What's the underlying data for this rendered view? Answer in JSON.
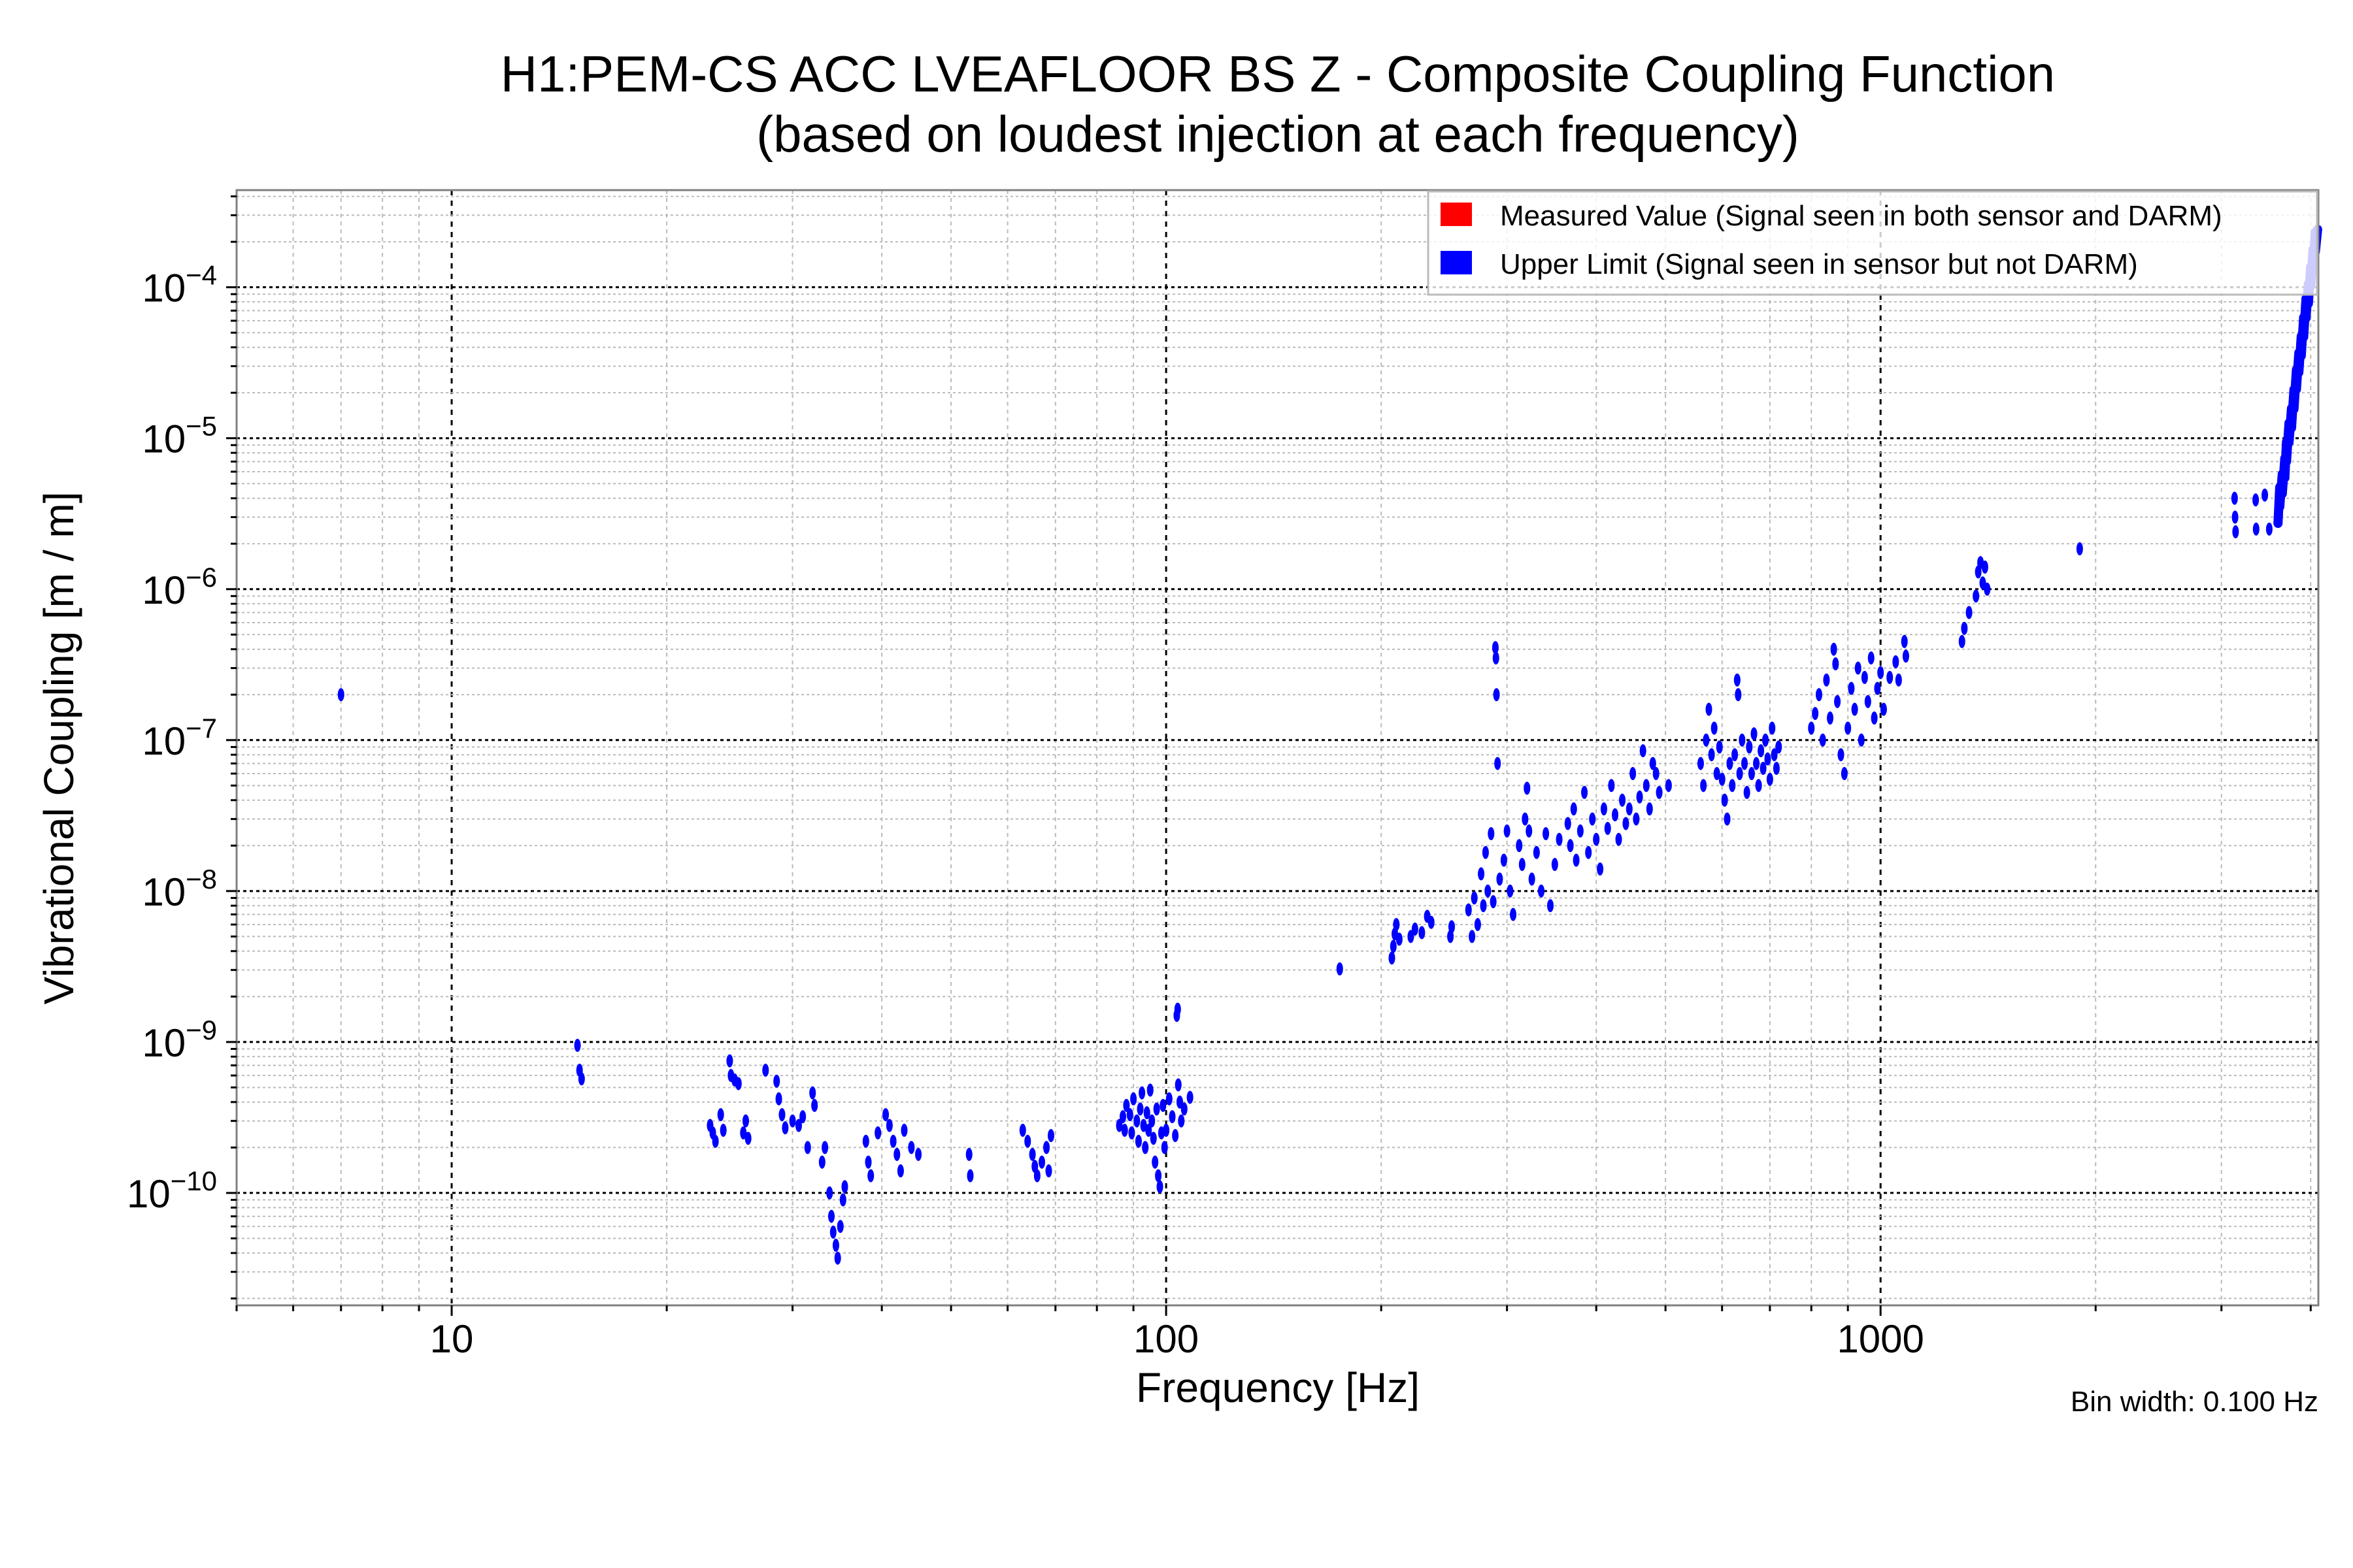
{
  "chart_data": {
    "type": "scatter",
    "title": [
      "H1:PEM-CS ACC LVEAFLOOR BS Z - Composite Coupling Function",
      "(based on loudest injection at each frequency)"
    ],
    "xlabel": "Frequency [Hz]",
    "ylabel": "Vibrational Coupling [m / m]",
    "xscale": "log",
    "yscale": "log",
    "xlim": [
      5,
      4100
    ],
    "ylim": [
      1.8e-11,
      0.00044
    ],
    "grid": true,
    "xticks": [
      {
        "value": 10,
        "label": "10"
      },
      {
        "value": 100,
        "label": "100"
      },
      {
        "value": 1000,
        "label": "1000"
      }
    ],
    "yticks": [
      {
        "value": 1e-10,
        "base": "10",
        "exp": "−10"
      },
      {
        "value": 1e-09,
        "base": "10",
        "exp": "−9"
      },
      {
        "value": 1e-08,
        "base": "10",
        "exp": "−8"
      },
      {
        "value": 1e-07,
        "base": "10",
        "exp": "−7"
      },
      {
        "value": 1e-06,
        "base": "10",
        "exp": "−6"
      },
      {
        "value": 1e-05,
        "base": "10",
        "exp": "−5"
      },
      {
        "value": 0.0001,
        "base": "10",
        "exp": "−4"
      }
    ],
    "legend": {
      "placement": "top-right",
      "entries": [
        {
          "label": "Measured Value (Signal seen in both sensor and DARM)",
          "color": "#ff0000"
        },
        {
          "label": "Upper Limit (Signal seen in sensor but not DARM)",
          "color": "#0000ff"
        }
      ]
    },
    "annotation": "Bin width: 0.100 Hz",
    "series": [
      {
        "name": "Measured Value",
        "color": "#ff0000",
        "points": []
      },
      {
        "name": "Upper Limit",
        "color": "#0000ff",
        "points": [
          [
            7,
            2e-07
          ],
          [
            15,
            9.5e-10
          ],
          [
            15.1,
            6.5e-10
          ],
          [
            15.2,
            5.7e-10
          ],
          [
            23,
            2.8e-10
          ],
          [
            23.2,
            2.5e-10
          ],
          [
            23.4,
            2.2e-10
          ],
          [
            23.8,
            3.3e-10
          ],
          [
            24,
            2.6e-10
          ],
          [
            24.5,
            7.5e-10
          ],
          [
            24.6,
            6e-10
          ],
          [
            24.9,
            5.6e-10
          ],
          [
            25.2,
            5.3e-10
          ],
          [
            25.6,
            2.5e-10
          ],
          [
            25.8,
            3e-10
          ],
          [
            26,
            2.3e-10
          ],
          [
            27.5,
            6.5e-10
          ],
          [
            28.5,
            5.5e-10
          ],
          [
            28.7,
            4.2e-10
          ],
          [
            29,
            3.3e-10
          ],
          [
            29.3,
            2.7e-10
          ],
          [
            30,
            3e-10
          ],
          [
            30.6,
            2.8e-10
          ],
          [
            31,
            3.2e-10
          ],
          [
            31.5,
            2e-10
          ],
          [
            32,
            4.6e-10
          ],
          [
            32.2,
            3.8e-10
          ],
          [
            33,
            1.6e-10
          ],
          [
            33.3,
            2e-10
          ],
          [
            33.8,
            1e-10
          ],
          [
            34,
            7e-11
          ],
          [
            34.2,
            5.5e-11
          ],
          [
            34.5,
            4.5e-11
          ],
          [
            34.7,
            3.7e-11
          ],
          [
            35,
            6e-11
          ],
          [
            35.3,
            9e-11
          ],
          [
            35.5,
            1.1e-10
          ],
          [
            38,
            2.2e-10
          ],
          [
            38.3,
            1.6e-10
          ],
          [
            38.6,
            1.3e-10
          ],
          [
            39.5,
            2.5e-10
          ],
          [
            40.5,
            3.3e-10
          ],
          [
            41,
            2.8e-10
          ],
          [
            41.5,
            2.2e-10
          ],
          [
            42,
            1.8e-10
          ],
          [
            42.5,
            1.4e-10
          ],
          [
            43,
            2.6e-10
          ],
          [
            44,
            2e-10
          ],
          [
            45,
            1.8e-10
          ],
          [
            53,
            1.8e-10
          ],
          [
            53.2,
            1.3e-10
          ],
          [
            63,
            2.6e-10
          ],
          [
            64,
            2.2e-10
          ],
          [
            65,
            1.8e-10
          ],
          [
            65.5,
            1.5e-10
          ],
          [
            66,
            1.3e-10
          ],
          [
            67,
            1.6e-10
          ],
          [
            68,
            2e-10
          ],
          [
            69,
            2.4e-10
          ],
          [
            68.5,
            1.4e-10
          ],
          [
            86,
            2.8e-10
          ],
          [
            87,
            3.2e-10
          ],
          [
            87.5,
            2.6e-10
          ],
          [
            88,
            3.8e-10
          ],
          [
            89,
            3.3e-10
          ],
          [
            89.5,
            2.5e-10
          ],
          [
            90,
            4.2e-10
          ],
          [
            91,
            3e-10
          ],
          [
            91.5,
            2.2e-10
          ],
          [
            92,
            3.6e-10
          ],
          [
            92.5,
            4.6e-10
          ],
          [
            93,
            2.8e-10
          ],
          [
            93.5,
            2e-10
          ],
          [
            94,
            3.4e-10
          ],
          [
            94.5,
            2.6e-10
          ],
          [
            95,
            4.8e-10
          ],
          [
            95.5,
            3e-10
          ],
          [
            96,
            2.3e-10
          ],
          [
            96.5,
            1.6e-10
          ],
          [
            97,
            3.6e-10
          ],
          [
            97.5,
            1.3e-10
          ],
          [
            98,
            1.1e-10
          ],
          [
            98.5,
            2.5e-10
          ],
          [
            99,
            3.8e-10
          ],
          [
            99.5,
            2e-10
          ],
          [
            100,
            2.6e-10
          ],
          [
            101,
            4.2e-10
          ],
          [
            102,
            3.2e-10
          ],
          [
            103,
            2.4e-10
          ],
          [
            104,
            5.2e-10
          ],
          [
            104.5,
            4e-10
          ],
          [
            105,
            3e-10
          ],
          [
            106,
            3.6e-10
          ],
          [
            108,
            4.3e-10
          ],
          [
            103.5,
            1.5e-09
          ],
          [
            103.8,
            1.65e-09
          ],
          [
            175,
            3.05e-09
          ],
          [
            207,
            3.6e-09
          ],
          [
            208,
            4.3e-09
          ],
          [
            209,
            5.2e-09
          ],
          [
            210,
            6e-09
          ],
          [
            212,
            4.8e-09
          ],
          [
            220,
            5e-09
          ],
          [
            223,
            5.6e-09
          ],
          [
            228,
            5.3e-09
          ],
          [
            232,
            6.8e-09
          ],
          [
            235,
            6.2e-09
          ],
          [
            250,
            5e-09
          ],
          [
            251,
            5.8e-09
          ],
          [
            265,
            7.5e-09
          ],
          [
            268,
            5e-09
          ],
          [
            270,
            9e-09
          ],
          [
            273,
            6e-09
          ],
          [
            276,
            1.3e-08
          ],
          [
            278,
            8e-09
          ],
          [
            280,
            1.8e-08
          ],
          [
            282,
            1e-08
          ],
          [
            285,
            2.4e-08
          ],
          [
            287,
            8.5e-09
          ],
          [
            289,
            4.1e-07
          ],
          [
            289.5,
            3.5e-07
          ],
          [
            290,
            2e-07
          ],
          [
            291,
            7e-08
          ],
          [
            293,
            1.2e-08
          ],
          [
            297,
            1.6e-08
          ],
          [
            300,
            2.5e-08
          ],
          [
            303,
            1e-08
          ],
          [
            306,
            7e-09
          ],
          [
            312,
            2e-08
          ],
          [
            315,
            1.5e-08
          ],
          [
            318,
            3e-08
          ],
          [
            320,
            4.8e-08
          ],
          [
            322,
            2.5e-08
          ],
          [
            325,
            1.2e-08
          ],
          [
            330,
            1.8e-08
          ],
          [
            335,
            1e-08
          ],
          [
            340,
            2.4e-08
          ],
          [
            345,
            8e-09
          ],
          [
            350,
            1.5e-08
          ],
          [
            355,
            2.2e-08
          ],
          [
            365,
            2.8e-08
          ],
          [
            368,
            2e-08
          ],
          [
            372,
            3.5e-08
          ],
          [
            375,
            1.6e-08
          ],
          [
            380,
            2.5e-08
          ],
          [
            385,
            4.5e-08
          ],
          [
            390,
            1.8e-08
          ],
          [
            395,
            3e-08
          ],
          [
            400,
            2.2e-08
          ],
          [
            405,
            1.4e-08
          ],
          [
            410,
            3.5e-08
          ],
          [
            415,
            2.6e-08
          ],
          [
            420,
            5e-08
          ],
          [
            425,
            3.2e-08
          ],
          [
            430,
            2.2e-08
          ],
          [
            435,
            4e-08
          ],
          [
            440,
            2.8e-08
          ],
          [
            445,
            3.5e-08
          ],
          [
            450,
            6e-08
          ],
          [
            455,
            3e-08
          ],
          [
            460,
            4.2e-08
          ],
          [
            465,
            8.5e-08
          ],
          [
            470,
            5e-08
          ],
          [
            475,
            3.5e-08
          ],
          [
            480,
            7e-08
          ],
          [
            485,
            6e-08
          ],
          [
            490,
            4.5e-08
          ],
          [
            505,
            5e-08
          ],
          [
            560,
            7e-08
          ],
          [
            565,
            5e-08
          ],
          [
            570,
            1e-07
          ],
          [
            575,
            1.6e-07
          ],
          [
            580,
            8e-08
          ],
          [
            585,
            1.2e-07
          ],
          [
            590,
            6e-08
          ],
          [
            595,
            9e-08
          ],
          [
            600,
            5.5e-08
          ],
          [
            605,
            4e-08
          ],
          [
            610,
            3e-08
          ],
          [
            615,
            7e-08
          ],
          [
            620,
            5e-08
          ],
          [
            625,
            8e-08
          ],
          [
            630,
            2.5e-07
          ],
          [
            632,
            2e-07
          ],
          [
            635,
            6e-08
          ],
          [
            640,
            1e-07
          ],
          [
            645,
            7e-08
          ],
          [
            650,
            4.5e-08
          ],
          [
            655,
            9e-08
          ],
          [
            660,
            6e-08
          ],
          [
            665,
            1.1e-07
          ],
          [
            670,
            7e-08
          ],
          [
            675,
            5e-08
          ],
          [
            680,
            8.5e-08
          ],
          [
            685,
            6.5e-08
          ],
          [
            690,
            1e-07
          ],
          [
            695,
            7.5e-08
          ],
          [
            700,
            5.5e-08
          ],
          [
            705,
            1.2e-07
          ],
          [
            710,
            8e-08
          ],
          [
            715,
            6.5e-08
          ],
          [
            720,
            9e-08
          ],
          [
            800,
            1.2e-07
          ],
          [
            810,
            1.5e-07
          ],
          [
            820,
            2e-07
          ],
          [
            830,
            1e-07
          ],
          [
            840,
            2.5e-07
          ],
          [
            850,
            1.4e-07
          ],
          [
            860,
            4e-07
          ],
          [
            865,
            3.2e-07
          ],
          [
            870,
            1.8e-07
          ],
          [
            880,
            8e-08
          ],
          [
            890,
            6e-08
          ],
          [
            900,
            1.2e-07
          ],
          [
            910,
            2.2e-07
          ],
          [
            920,
            1.6e-07
          ],
          [
            930,
            3e-07
          ],
          [
            940,
            1e-07
          ],
          [
            950,
            2.6e-07
          ],
          [
            960,
            1.8e-07
          ],
          [
            970,
            3.5e-07
          ],
          [
            980,
            1.4e-07
          ],
          [
            990,
            2.2e-07
          ],
          [
            1000,
            2.8e-07
          ],
          [
            1010,
            1.6e-07
          ],
          [
            1030,
            2.6e-07
          ],
          [
            1050,
            3.3e-07
          ],
          [
            1060,
            2.5e-07
          ],
          [
            1080,
            4.5e-07
          ],
          [
            1085,
            3.6e-07
          ],
          [
            1300,
            4.5e-07
          ],
          [
            1310,
            5.5e-07
          ],
          [
            1330,
            7e-07
          ],
          [
            1360,
            9e-07
          ],
          [
            1370,
            1.3e-06
          ],
          [
            1380,
            1.5e-06
          ],
          [
            1390,
            1.1e-06
          ],
          [
            1400,
            1.4e-06
          ],
          [
            1410,
            1e-06
          ],
          [
            1900,
            1.85e-06
          ],
          [
            3130,
            4e-06
          ],
          [
            3135,
            3e-06
          ],
          [
            3140,
            2.4e-06
          ],
          [
            3350,
            3.9e-06
          ],
          [
            3355,
            2.5e-06
          ],
          [
            3450,
            4.2e-06
          ],
          [
            3500,
            2.5e-06
          ],
          [
            3600,
            3.5e-06
          ],
          [
            3620,
            4.5e-06
          ],
          [
            3650,
            5.5e-06
          ],
          [
            3680,
            7e-06
          ],
          [
            3700,
            9e-06
          ],
          [
            3730,
            1.2e-05
          ],
          [
            3760,
            1.5e-05
          ],
          [
            3790,
            2e-05
          ],
          [
            3820,
            2.7e-05
          ],
          [
            3850,
            3.5e-05
          ],
          [
            3880,
            4.5e-05
          ],
          [
            3910,
            6e-05
          ],
          [
            3940,
            8e-05
          ],
          [
            3970,
            0.0001
          ],
          [
            4000,
            0.00013
          ],
          [
            4030,
            0.00017
          ],
          [
            4060,
            0.00022
          ],
          [
            4090,
            0.00023
          ]
        ]
      }
    ]
  }
}
